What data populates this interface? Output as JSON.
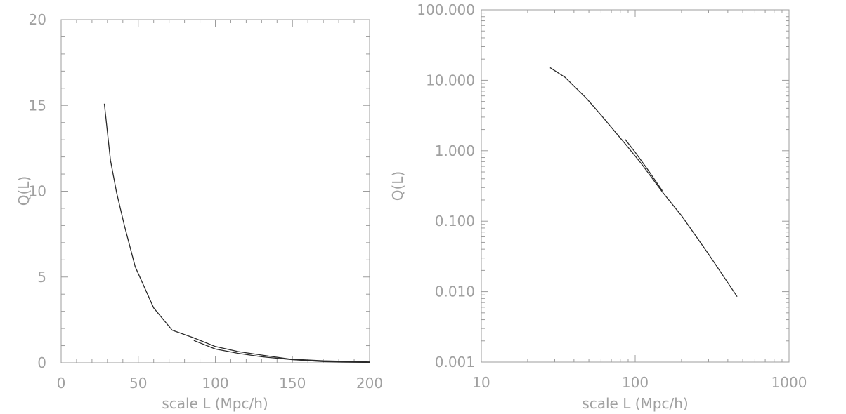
{
  "chart_data": [
    {
      "type": "line",
      "xlabel": "scale L (Mpc/h)",
      "ylabel": "Q(L)",
      "xlim": [
        0,
        200
      ],
      "ylim": [
        0,
        20
      ],
      "x_scale": "linear",
      "y_scale": "linear",
      "xticks": [
        "0",
        "50",
        "100",
        "150",
        "200"
      ],
      "yticks": [
        "0",
        "5",
        "10",
        "15",
        "20"
      ],
      "grid": false,
      "series": [
        {
          "x": [
            28,
            32,
            36,
            41,
            48,
            60,
            72,
            86,
            100,
            115,
            130,
            148,
            170,
            200
          ],
          "y": [
            15.1,
            11.8,
            9.9,
            8.0,
            5.6,
            3.2,
            1.9,
            1.45,
            0.95,
            0.65,
            0.45,
            0.22,
            0.12,
            0.05
          ]
        },
        {
          "x": [
            86,
            100,
            115,
            130,
            150,
            170,
            200
          ],
          "y": [
            1.3,
            0.8,
            0.55,
            0.35,
            0.18,
            0.07,
            0.02
          ]
        }
      ]
    },
    {
      "type": "line",
      "xlabel": "scale L (Mpc/h)",
      "ylabel": "Q(L)",
      "xlim": [
        10,
        1000
      ],
      "ylim": [
        0.001,
        100
      ],
      "x_scale": "log",
      "y_scale": "log",
      "xticks": [
        "10",
        "100",
        "1000"
      ],
      "yticks": [
        "0.001",
        "0.010",
        "0.100",
        "1.000",
        "10.000",
        "100.000"
      ],
      "grid": false,
      "series": [
        {
          "x": [
            28,
            35,
            48,
            60,
            85,
            110,
            150,
            200,
            300,
            460
          ],
          "y": [
            15.1,
            11.0,
            5.6,
            3.2,
            1.3,
            0.65,
            0.26,
            0.12,
            0.034,
            0.0085
          ]
        },
        {
          "x": [
            86,
            100,
            120,
            150
          ],
          "y": [
            1.45,
            0.95,
            0.55,
            0.27
          ]
        }
      ]
    }
  ]
}
